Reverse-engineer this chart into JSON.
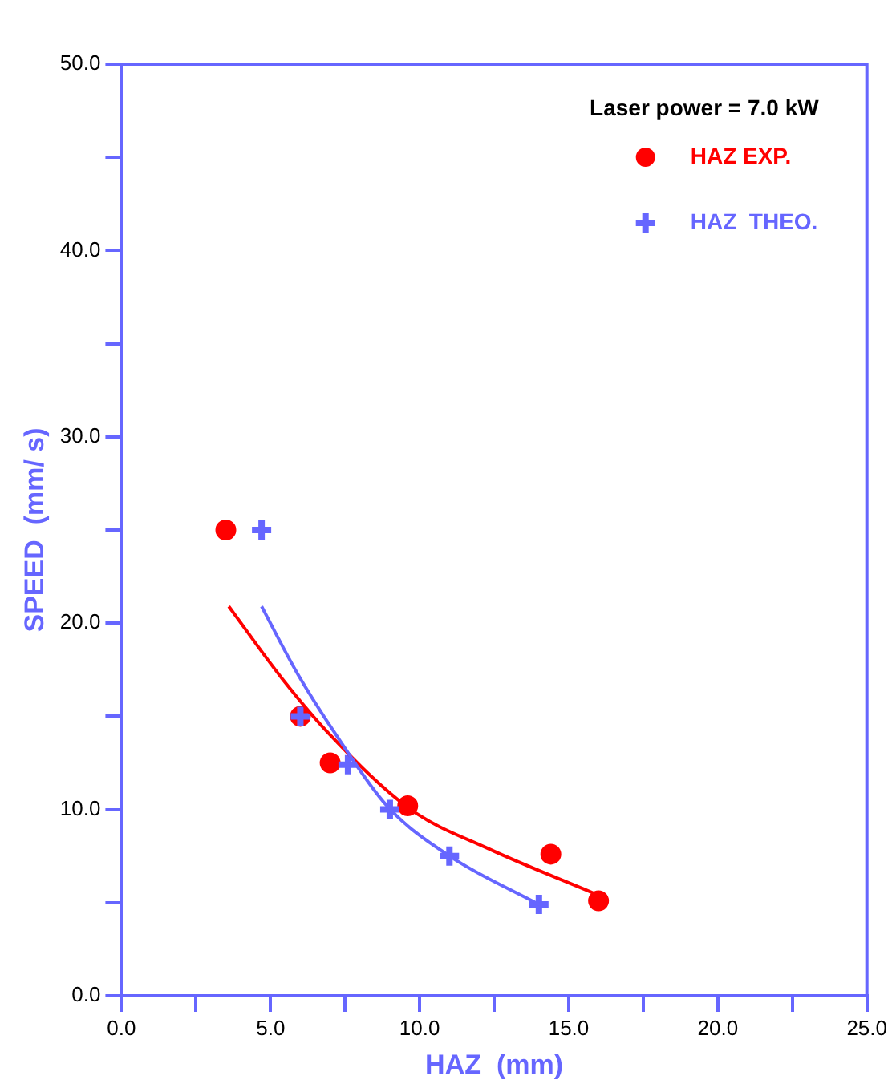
{
  "chart_data": {
    "type": "scatter",
    "xlabel": "HAZ  (mm)",
    "ylabel": "SPEED  (mm/ s)",
    "annotations": [
      "Laser power = 7.0 kW"
    ],
    "legend": "top right",
    "grid": false,
    "xlim": [
      0,
      25
    ],
    "ylim": [
      0,
      50
    ],
    "xticks": [
      {
        "value": 0,
        "label": "0.0"
      },
      {
        "value": 2.5,
        "label": null
      },
      {
        "value": 5,
        "label": "5.0"
      },
      {
        "value": 7.5,
        "label": null
      },
      {
        "value": 10,
        "label": "10.0"
      },
      {
        "value": 12.5,
        "label": null
      },
      {
        "value": 15,
        "label": "15.0"
      },
      {
        "value": 17.5,
        "label": null
      },
      {
        "value": 20,
        "label": "20.0"
      },
      {
        "value": 22.5,
        "label": null
      },
      {
        "value": 25,
        "label": "25.0"
      }
    ],
    "yticks": [
      {
        "value": 0,
        "label": "0.0"
      },
      {
        "value": 5,
        "label": null
      },
      {
        "value": 10,
        "label": "10.0"
      },
      {
        "value": 15,
        "label": null
      },
      {
        "value": 20,
        "label": "20.0"
      },
      {
        "value": 25,
        "label": null
      },
      {
        "value": 30,
        "label": "30.0"
      },
      {
        "value": 35,
        "label": null
      },
      {
        "value": 40,
        "label": "40.0"
      },
      {
        "value": 45,
        "label": null
      },
      {
        "value": 50,
        "label": "50.0"
      }
    ],
    "series": [
      {
        "name": "HAZ EXP.",
        "marker": "circle",
        "color": "#ff0000",
        "x": [
          3.5,
          6.0,
          7.0,
          9.6,
          14.4,
          16.0
        ],
        "values": [
          25.0,
          15.0,
          12.5,
          10.2,
          7.6,
          5.1
        ]
      },
      {
        "name": "HAZ  THEO.",
        "marker": "cross",
        "color": "#6666ff",
        "x": [
          4.7,
          6.0,
          7.6,
          9.0,
          11.0,
          14.0
        ],
        "values": [
          25.0,
          15.0,
          12.4,
          10.0,
          7.5,
          4.9
        ]
      },
      {
        "type": "line",
        "marker": "none",
        "color": "#ff0000",
        "x": [
          3.6,
          5.4,
          7.0,
          9.7,
          12.3,
          15.7,
          16.0
        ],
        "values": [
          20.9,
          17.0,
          14.0,
          10.0,
          7.9,
          5.6,
          5.4
        ]
      },
      {
        "type": "line",
        "marker": "none",
        "color": "#6666ff",
        "x": [
          4.7,
          5.9,
          7.2,
          8.9,
          11.0,
          14.0
        ],
        "values": [
          20.9,
          17.3,
          14.0,
          10.2,
          7.5,
          4.9
        ]
      }
    ]
  }
}
